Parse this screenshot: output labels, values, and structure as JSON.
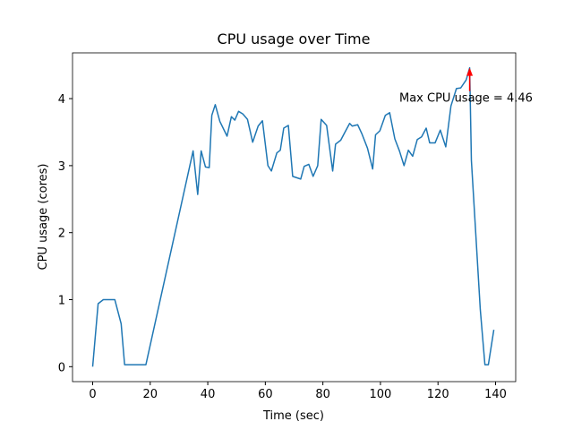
{
  "chart_data": {
    "type": "line",
    "title": "CPU usage over Time",
    "x_label": "Time (sec)",
    "y_label": "CPU usage (cores)",
    "x": [
      0,
      1.9,
      3.7,
      7.7,
      9.9,
      11.1,
      14.8,
      18.5,
      34.9,
      36.5,
      37.7,
      39.2,
      40.5,
      41.4,
      42.6,
      44.2,
      46.7,
      48.2,
      49.4,
      50.7,
      52.2,
      53.8,
      55.6,
      57.5,
      59,
      60.9,
      62.1,
      64,
      65.2,
      66.4,
      68,
      69.5,
      72.3,
      73.5,
      75.1,
      76.6,
      78.2,
      79.4,
      81.3,
      83.4,
      84.4,
      86.2,
      87.8,
      89.3,
      90.2,
      92.1,
      93.6,
      95.5,
      97.3,
      98.3,
      99.8,
      101.7,
      103.2,
      105,
      106.6,
      108.2,
      109.7,
      111.2,
      112.8,
      114.3,
      115.9,
      117.1,
      119,
      120.8,
      122.7,
      124.5,
      126.4,
      127.9,
      129.8,
      131,
      131.6,
      134.7,
      136.3,
      137.5,
      139.4
    ],
    "series": [
      {
        "name": "CPU usage",
        "color": "#1f77b4",
        "values": [
          0,
          0.94,
          1.0,
          1.0,
          0.64,
          0.03,
          0.03,
          0.03,
          3.22,
          2.57,
          3.22,
          2.98,
          2.97,
          3.75,
          3.91,
          3.66,
          3.44,
          3.73,
          3.68,
          3.81,
          3.77,
          3.69,
          3.35,
          3.59,
          3.67,
          3.0,
          2.92,
          3.19,
          3.23,
          3.56,
          3.6,
          2.84,
          2.8,
          2.99,
          3.02,
          2.84,
          3.0,
          3.69,
          3.6,
          2.92,
          3.32,
          3.38,
          3.51,
          3.63,
          3.59,
          3.61,
          3.47,
          3.26,
          2.95,
          3.46,
          3.52,
          3.75,
          3.79,
          3.4,
          3.22,
          3.0,
          3.23,
          3.14,
          3.39,
          3.43,
          3.56,
          3.34,
          3.34,
          3.53,
          3.28,
          3.89,
          4.15,
          4.16,
          4.28,
          4.46,
          3.08,
          0.85,
          0.03,
          0.03,
          0.55
        ]
      }
    ],
    "annotation": {
      "text": "Max CPU usage = 4.46",
      "x": 131,
      "y": 4.46,
      "color": "#ff0000"
    },
    "xlim": [
      -7,
      147
    ],
    "ylim": [
      -0.223,
      4.683
    ],
    "xticks": [
      0,
      20,
      40,
      60,
      80,
      100,
      120,
      140
    ],
    "yticks": [
      0,
      1,
      2,
      3,
      4
    ]
  }
}
